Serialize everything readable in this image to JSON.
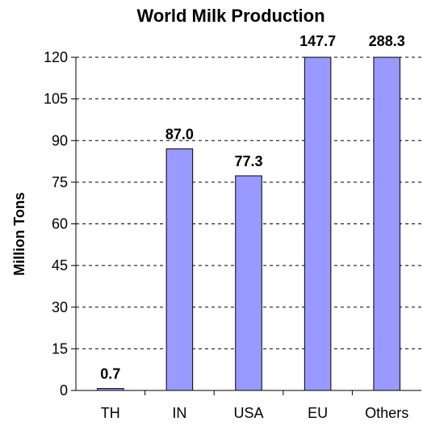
{
  "chart_data": {
    "type": "bar",
    "title": "World Milk Production",
    "xlabel": "",
    "ylabel": "Million Tons",
    "categories": [
      "TH",
      "IN",
      "USA",
      "EU",
      "Others"
    ],
    "values": [
      0.7,
      87.0,
      77.3,
      147.7,
      288.3
    ],
    "value_labels": [
      "0.7",
      "87.0",
      "77.3",
      "147.7",
      "288.3"
    ],
    "ylim": [
      0,
      120
    ],
    "yticks": [
      0,
      15,
      30,
      45,
      60,
      75,
      90,
      105,
      120
    ],
    "grid": true,
    "bar_color": "#9999ff",
    "legend": "none"
  }
}
